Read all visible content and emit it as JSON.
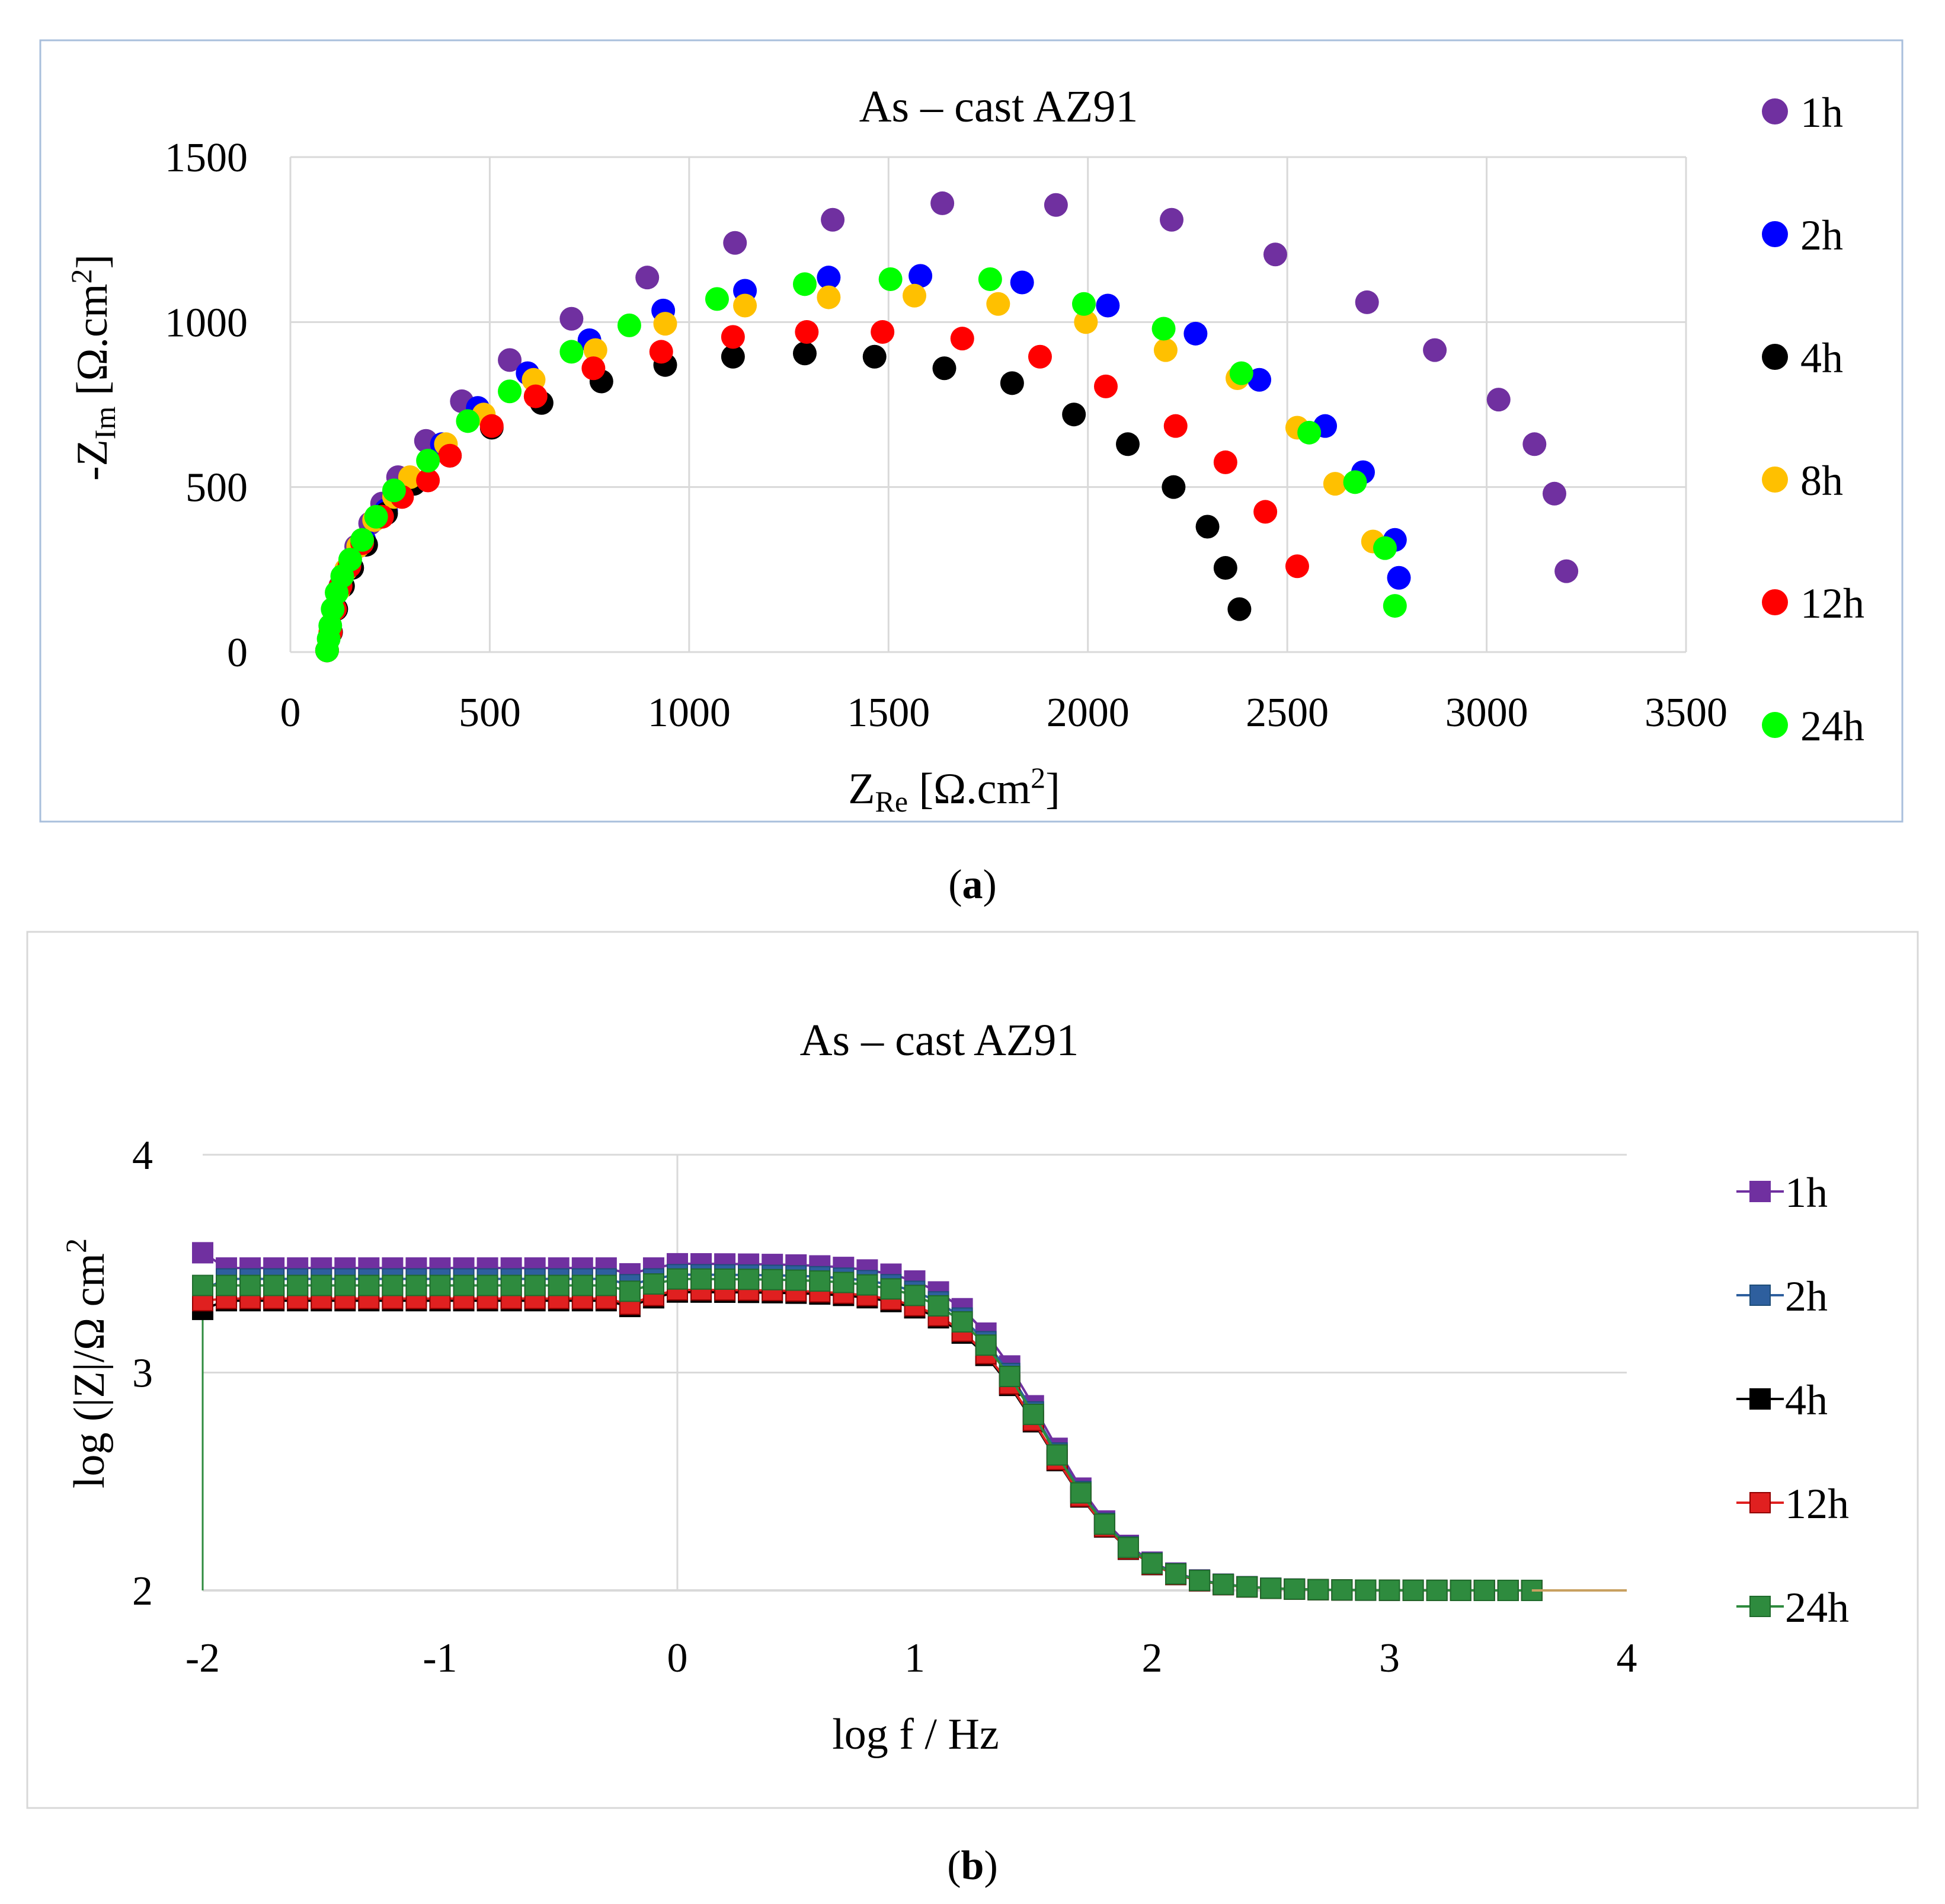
{
  "chart_data": [
    {
      "panel": "a",
      "type": "scatter",
      "title": "As – cast AZ91",
      "xlabel": "Z_Re [Ω.cm²]",
      "ylabel": "-Z_Im [Ω.cm²]",
      "xlabel_parts": {
        "main": "Z",
        "sub": "Re",
        "unit": " [Ω.cm",
        "sup": "2",
        "close": "]"
      },
      "ylabel_parts": {
        "main": "-Z",
        "sub": "Im",
        "unit": " [Ω.cm",
        "sup": "2",
        "close": "]"
      },
      "xlim": [
        0,
        3500
      ],
      "ylim": [
        0,
        1500
      ],
      "xticks": [
        "0",
        "500",
        "1000",
        "1500",
        "2000",
        "2500",
        "3000",
        "3500"
      ],
      "yticks": [
        "0",
        "500",
        "1000",
        "1500"
      ],
      "grid": true,
      "legend_position": "right",
      "series": [
        {
          "name": "1h",
          "color": "#7030a0",
          "points": [
            [
              92,
              5
            ],
            [
              100,
              60
            ],
            [
              110,
              130
            ],
            [
              125,
              200
            ],
            [
              140,
              250
            ],
            [
              165,
              320
            ],
            [
              200,
              390
            ],
            [
              230,
              450
            ],
            [
              270,
              530
            ],
            [
              340,
              640
            ],
            [
              430,
              760
            ],
            [
              550,
              885
            ],
            [
              705,
              1010
            ],
            [
              895,
              1135
            ],
            [
              1115,
              1240
            ],
            [
              1360,
              1310
            ],
            [
              1635,
              1360
            ],
            [
              1920,
              1355
            ],
            [
              2210,
              1310
            ],
            [
              2470,
              1205
            ],
            [
              2700,
              1060
            ],
            [
              2870,
              915
            ],
            [
              3030,
              765
            ],
            [
              3120,
              630
            ],
            [
              3170,
              480
            ],
            [
              3200,
              245
            ]
          ]
        },
        {
          "name": "2h",
          "color": "#0000ff",
          "points": [
            [
              92,
              5
            ],
            [
              100,
              60
            ],
            [
              112,
              130
            ],
            [
              128,
              200
            ],
            [
              150,
              260
            ],
            [
              185,
              340
            ],
            [
              240,
              430
            ],
            [
              300,
              520
            ],
            [
              380,
              630
            ],
            [
              470,
              740
            ],
            [
              595,
              845
            ],
            [
              750,
              945
            ],
            [
              935,
              1035
            ],
            [
              1140,
              1095
            ],
            [
              1350,
              1135
            ],
            [
              1580,
              1140
            ],
            [
              1835,
              1120
            ],
            [
              2050,
              1050
            ],
            [
              2270,
              965
            ],
            [
              2430,
              825
            ],
            [
              2595,
              685
            ],
            [
              2690,
              545
            ],
            [
              2770,
              340
            ],
            [
              2780,
              225
            ]
          ]
        },
        {
          "name": "4h",
          "color": "#000000",
          "points": [
            [
              92,
              5
            ],
            [
              102,
              60
            ],
            [
              115,
              130
            ],
            [
              132,
              200
            ],
            [
              155,
              255
            ],
            [
              190,
              325
            ],
            [
              240,
              420
            ],
            [
              310,
              510
            ],
            [
              400,
              595
            ],
            [
              505,
              680
            ],
            [
              630,
              755
            ],
            [
              780,
              820
            ],
            [
              940,
              870
            ],
            [
              1110,
              895
            ],
            [
              1290,
              905
            ],
            [
              1465,
              895
            ],
            [
              1640,
              860
            ],
            [
              1810,
              815
            ],
            [
              1965,
              720
            ],
            [
              2100,
              630
            ],
            [
              2215,
              500
            ],
            [
              2300,
              380
            ],
            [
              2345,
              255
            ],
            [
              2380,
              130
            ]
          ]
        },
        {
          "name": "8h",
          "color": "#ffc000",
          "points": [
            [
              92,
              5
            ],
            [
              100,
              60
            ],
            [
              110,
              130
            ],
            [
              122,
              190
            ],
            [
              140,
              250
            ],
            [
              170,
              320
            ],
            [
              210,
              400
            ],
            [
              260,
              470
            ],
            [
              300,
              530
            ],
            [
              390,
              630
            ],
            [
              485,
              720
            ],
            [
              610,
              825
            ],
            [
              765,
              915
            ],
            [
              940,
              995
            ],
            [
              1140,
              1050
            ],
            [
              1350,
              1075
            ],
            [
              1565,
              1080
            ],
            [
              1775,
              1055
            ],
            [
              1995,
              1000
            ],
            [
              2195,
              915
            ],
            [
              2375,
              830
            ],
            [
              2525,
              680
            ],
            [
              2620,
              510
            ],
            [
              2715,
              335
            ]
          ]
        },
        {
          "name": "12h",
          "color": "#ff0000",
          "points": [
            [
              92,
              5
            ],
            [
              101,
              60
            ],
            [
              112,
              130
            ],
            [
              126,
              200
            ],
            [
              148,
              260
            ],
            [
              180,
              330
            ],
            [
              230,
              410
            ],
            [
              280,
              470
            ],
            [
              345,
              520
            ],
            [
              400,
              595
            ],
            [
              505,
              685
            ],
            [
              615,
              775
            ],
            [
              760,
              860
            ],
            [
              930,
              910
            ],
            [
              1110,
              955
            ],
            [
              1295,
              970
            ],
            [
              1485,
              970
            ],
            [
              1685,
              950
            ],
            [
              1880,
              895
            ],
            [
              2045,
              805
            ],
            [
              2220,
              685
            ],
            [
              2345,
              575
            ],
            [
              2445,
              425
            ],
            [
              2525,
              260
            ]
          ]
        },
        {
          "name": "24h",
          "color": "#00ff00",
          "points": [
            [
              92,
              5
            ],
            [
              96,
              40
            ],
            [
              100,
              80
            ],
            [
              106,
              130
            ],
            [
              116,
              180
            ],
            [
              130,
              230
            ],
            [
              150,
              280
            ],
            [
              180,
              340
            ],
            [
              215,
              410
            ],
            [
              260,
              490
            ],
            [
              345,
              580
            ],
            [
              445,
              700
            ],
            [
              550,
              790
            ],
            [
              705,
              910
            ],
            [
              850,
              990
            ],
            [
              1070,
              1070
            ],
            [
              1290,
              1115
            ],
            [
              1505,
              1130
            ],
            [
              1755,
              1130
            ],
            [
              1990,
              1055
            ],
            [
              2190,
              980
            ],
            [
              2385,
              845
            ],
            [
              2555,
              665
            ],
            [
              2670,
              515
            ],
            [
              2745,
              315
            ],
            [
              2770,
              140
            ]
          ]
        }
      ]
    },
    {
      "panel": "b",
      "type": "line",
      "title": "As – cast AZ91",
      "xlabel": "log f / Hz",
      "ylabel": "log (|Z|/Ω cm²)",
      "ylabel_parts": {
        "main": "log (|Z|/Ω cm",
        "sup": "2"
      },
      "xlim": [
        -2,
        4
      ],
      "ylim": [
        2,
        4
      ],
      "xticks": [
        "-2",
        "-1",
        "0",
        "1",
        "2",
        "3",
        "4"
      ],
      "yticks": [
        "2",
        "3",
        "4"
      ],
      "grid": true,
      "legend_position": "right",
      "series": [
        {
          "name": "1h",
          "color": "#7030a0",
          "marker_edge": "#7030a0",
          "plateau_low": 3.48,
          "start": 3.55,
          "plateau_high": 3.5
        },
        {
          "name": "2h",
          "color": "#2e5f9e",
          "marker_edge": "#1f4e79",
          "plateau_low": 3.43,
          "start": 3.38,
          "plateau_high": 3.45
        },
        {
          "name": "4h",
          "color": "#000000",
          "marker_edge": "#000000",
          "plateau_low": 3.33,
          "start": 3.29,
          "plateau_high": 3.37
        },
        {
          "name": "12h",
          "color": "#e02020",
          "marker_edge": "#900000",
          "plateau_low": 3.34,
          "start": 3.33,
          "plateau_high": 3.38
        },
        {
          "name": "24h",
          "color": "#2e8b3e",
          "marker_edge": "#1f6b2c",
          "plateau_low": 3.4,
          "start": 3.4,
          "plateau_high": 3.43
        }
      ],
      "high_freq_limit": 2.0,
      "max_logf": 3.6
    }
  ],
  "captions": {
    "a": "a",
    "b": "b"
  }
}
